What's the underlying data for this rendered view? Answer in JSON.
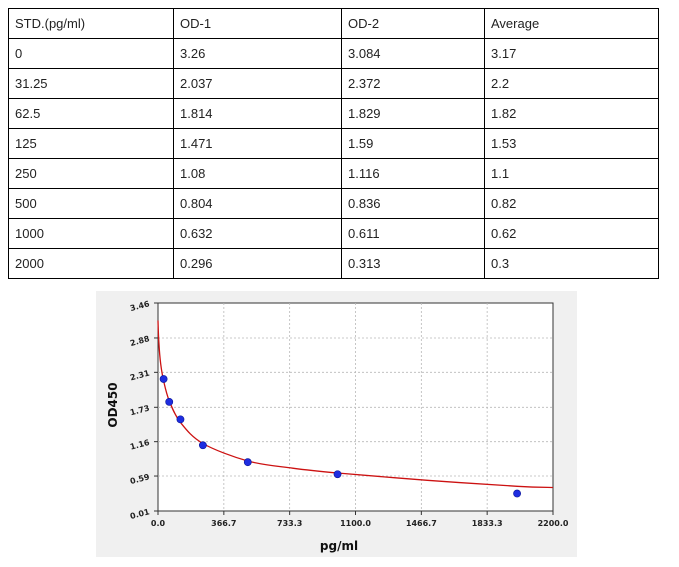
{
  "table": {
    "headers": [
      "STD.(pg/ml)",
      "OD-1",
      "OD-2",
      "Average"
    ],
    "rows": [
      [
        "0",
        "3.26",
        "3.084",
        "3.17"
      ],
      [
        "31.25",
        "2.037",
        "2.372",
        "2.2"
      ],
      [
        "62.5",
        "1.814",
        "1.829",
        "1.82"
      ],
      [
        "125",
        "1.471",
        "1.59",
        "1.53"
      ],
      [
        "250",
        "1.08",
        "1.116",
        "1.1"
      ],
      [
        "500",
        "0.804",
        "0.836",
        "0.82"
      ],
      [
        "1000",
        "0.632",
        "0.611",
        "0.62"
      ],
      [
        "2000",
        "0.296",
        "0.313",
        "0.3"
      ]
    ]
  },
  "chart_data": {
    "type": "scatter",
    "xlabel": "pg/ml",
    "ylabel": "OD450",
    "xlim": [
      0,
      2200
    ],
    "ylim": [
      0.01,
      3.46
    ],
    "xticks": [
      "0.0",
      "366.7",
      "733.3",
      "1100.0",
      "1466.7",
      "1833.3",
      "2200.0"
    ],
    "yticks": [
      "0.01",
      "0.59",
      "1.16",
      "1.73",
      "2.31",
      "2.88",
      "3.46"
    ],
    "grid": true,
    "colors": {
      "points": "#1e2de0",
      "curve": "#cc1111",
      "grid": "#b8b8b8"
    },
    "points": [
      {
        "x": 31.25,
        "y": 2.2
      },
      {
        "x": 62.5,
        "y": 1.82
      },
      {
        "x": 125,
        "y": 1.53
      },
      {
        "x": 250,
        "y": 1.1
      },
      {
        "x": 500,
        "y": 0.82
      },
      {
        "x": 1000,
        "y": 0.62
      },
      {
        "x": 2000,
        "y": 0.3
      }
    ],
    "fit_curve": [
      {
        "x": 0,
        "y": 3.17
      },
      {
        "x": 5,
        "y": 2.8
      },
      {
        "x": 15,
        "y": 2.45
      },
      {
        "x": 31.25,
        "y": 2.17
      },
      {
        "x": 62.5,
        "y": 1.84
      },
      {
        "x": 125,
        "y": 1.48
      },
      {
        "x": 250,
        "y": 1.13
      },
      {
        "x": 500,
        "y": 0.84
      },
      {
        "x": 750,
        "y": 0.72
      },
      {
        "x": 1000,
        "y": 0.64
      },
      {
        "x": 1500,
        "y": 0.52
      },
      {
        "x": 2000,
        "y": 0.42
      },
      {
        "x": 2200,
        "y": 0.4
      }
    ]
  }
}
